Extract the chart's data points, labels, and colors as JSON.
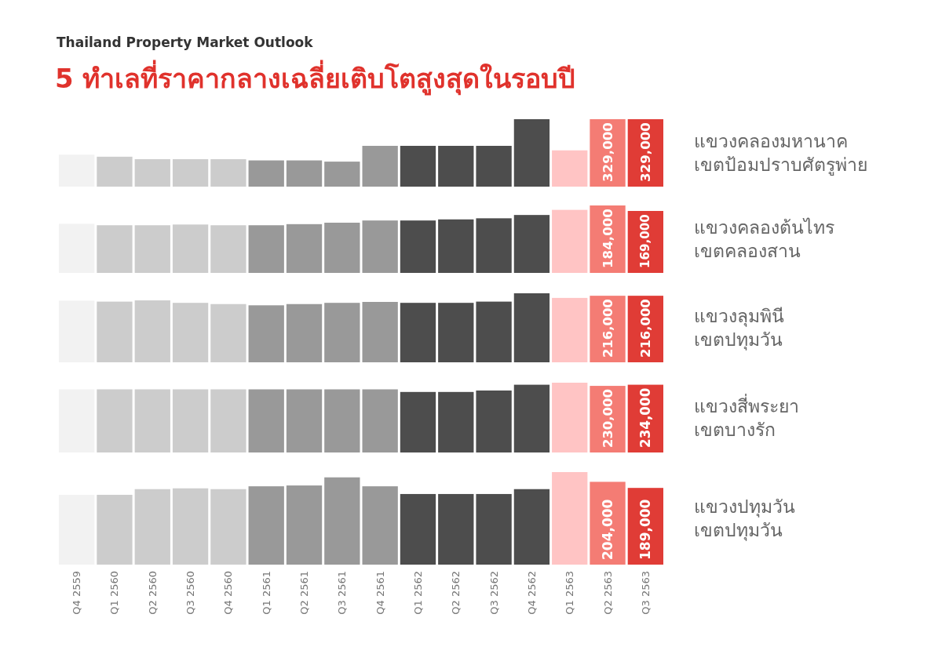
{
  "chart_data": [
    {
      "type": "other",
      "title": "5 ทำเลที่ราคากลางเฉลี่ยเติบโตสูงสุดในรอบปี",
      "subtitle": "Thailand Property Market Outlook"
    },
    {
      "type": "bar",
      "y2label": "แขวงคลองมหานาค\nเขตป้อมปราบศัตรูพ่าย",
      "tick_labels": false,
      "categories": [
        null,
        null,
        null,
        null,
        null,
        null,
        null,
        null,
        null,
        null,
        null,
        null,
        null,
        null,
        null,
        null
      ],
      "values": [
        156000,
        146000,
        134000,
        134000,
        134000,
        128000,
        128000,
        122000,
        199000,
        199000,
        199000,
        199000,
        329000,
        177000,
        329000,
        329000
      ],
      "value_labels": [
        null,
        null,
        null,
        null,
        null,
        null,
        null,
        null,
        null,
        null,
        null,
        null,
        null,
        null,
        "329,000",
        "329,000"
      ],
      "colors": [
        "#f2f2f2",
        "#cccccc",
        "#cccccc",
        "#cccccc",
        "#cccccc",
        "#999999",
        "#999999",
        "#999999",
        "#999999",
        "#4d4d4d",
        "#4d4d4d",
        "#4d4d4d",
        "#4d4d4d",
        "#ffc4c4",
        "#f47c74",
        "#e03c36"
      ]
    },
    {
      "type": "bar",
      "y2label": "แขวงคลองต้นไทร\nเขตคลองสาน",
      "tick_labels": false,
      "categories": [
        null,
        null,
        null,
        null,
        null,
        null,
        null,
        null,
        null,
        null,
        null,
        null,
        null,
        null,
        null,
        null
      ],
      "values": [
        134000,
        130000,
        130000,
        132000,
        130000,
        130000,
        133000,
        137000,
        143000,
        143000,
        146000,
        149000,
        158000,
        172000,
        184000,
        169000
      ],
      "value_labels": [
        null,
        null,
        null,
        null,
        null,
        null,
        null,
        null,
        null,
        null,
        null,
        null,
        null,
        null,
        "184,000",
        "169,000"
      ],
      "colors": [
        "#f2f2f2",
        "#cccccc",
        "#cccccc",
        "#cccccc",
        "#cccccc",
        "#999999",
        "#999999",
        "#999999",
        "#999999",
        "#4d4d4d",
        "#4d4d4d",
        "#4d4d4d",
        "#4d4d4d",
        "#ffc4c4",
        "#f47c74",
        "#e03c36"
      ]
    },
    {
      "type": "bar",
      "y2label": "แขวงลุมพินี\nเขตปทุมวัน",
      "tick_labels": false,
      "categories": [
        null,
        null,
        null,
        null,
        null,
        null,
        null,
        null,
        null,
        null,
        null,
        null,
        null,
        null,
        null,
        null
      ],
      "values": [
        200000,
        197000,
        201000,
        193000,
        189000,
        185000,
        189000,
        193000,
        196000,
        193000,
        193000,
        197000,
        224000,
        209000,
        216000,
        216000
      ],
      "value_labels": [
        null,
        null,
        null,
        null,
        null,
        null,
        null,
        null,
        null,
        null,
        null,
        null,
        null,
        null,
        "216,000",
        "216,000"
      ],
      "colors": [
        "#f2f2f2",
        "#cccccc",
        "#cccccc",
        "#cccccc",
        "#cccccc",
        "#999999",
        "#999999",
        "#999999",
        "#999999",
        "#4d4d4d",
        "#4d4d4d",
        "#4d4d4d",
        "#4d4d4d",
        "#ffc4c4",
        "#f47c74",
        "#e03c36"
      ]
    },
    {
      "type": "bar",
      "y2label": "แขวงสี่พระยา\nเขตบางรัก",
      "tick_labels": false,
      "categories": [
        null,
        null,
        null,
        null,
        null,
        null,
        null,
        null,
        null,
        null,
        null,
        null,
        null,
        null,
        null,
        null
      ],
      "values": [
        218000,
        218000,
        218000,
        218000,
        218000,
        218000,
        218000,
        218000,
        218000,
        209000,
        209000,
        214000,
        234000,
        241000,
        230000,
        234000
      ],
      "value_labels": [
        null,
        null,
        null,
        null,
        null,
        null,
        null,
        null,
        null,
        null,
        null,
        null,
        null,
        null,
        "230,000",
        "234,000"
      ],
      "colors": [
        "#f2f2f2",
        "#cccccc",
        "#cccccc",
        "#cccccc",
        "#cccccc",
        "#999999",
        "#999999",
        "#999999",
        "#999999",
        "#4d4d4d",
        "#4d4d4d",
        "#4d4d4d",
        "#4d4d4d",
        "#ffc4c4",
        "#f47c74",
        "#e03c36"
      ]
    },
    {
      "type": "bar",
      "y2label": "แขวงปทุมวัน\nเขตปทุมวัน",
      "tick_labels": "x",
      "categories": [
        "Q4 2559",
        "Q1 2560",
        "Q2 2560",
        "Q3 2560",
        "Q4 2560",
        "Q1 2561",
        "Q2 2561",
        "Q3 2561",
        "Q4 2561",
        "Q1 2562",
        "Q2 2562",
        "Q3 2562",
        "Q4 2562",
        "Q1 2563",
        "Q2 2563",
        "Q3 2563"
      ],
      "values": [
        172000,
        172000,
        186000,
        188000,
        186000,
        193000,
        195000,
        215000,
        193000,
        174000,
        174000,
        174000,
        186000,
        228000,
        204000,
        189000
      ],
      "value_labels": [
        null,
        null,
        null,
        null,
        null,
        null,
        null,
        null,
        null,
        null,
        null,
        null,
        null,
        null,
        "204,000",
        "189,000"
      ],
      "colors": [
        "#f2f2f2",
        "#cccccc",
        "#cccccc",
        "#cccccc",
        "#cccccc",
        "#999999",
        "#999999",
        "#999999",
        "#999999",
        "#4d4d4d",
        "#4d4d4d",
        "#4d4d4d",
        "#4d4d4d",
        "#ffc4c4",
        "#f47c74",
        "#e03c36"
      ]
    }
  ]
}
